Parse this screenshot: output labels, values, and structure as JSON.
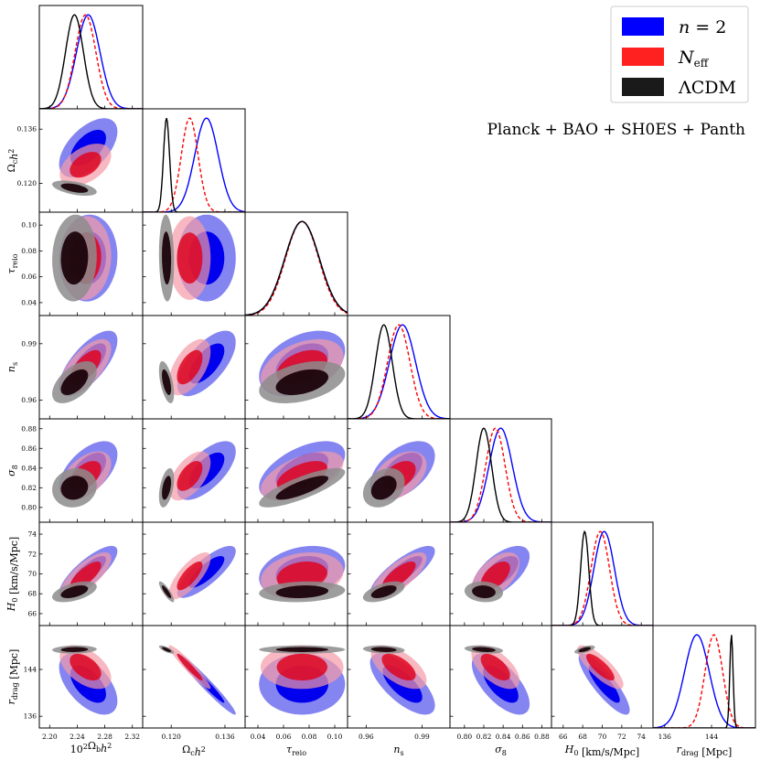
{
  "chart_data": {
    "type": "corner",
    "title": "Planck + BAO + SH0ES + Panth",
    "parameters": [
      {
        "id": "omega_b",
        "label": "10²Ω_b h²",
        "range": [
          2.185,
          2.335
        ],
        "ticks": [
          2.2,
          2.24,
          2.28,
          2.32
        ],
        "tick_labels": [
          "2.20",
          "2.24",
          "2.28",
          "2.32"
        ]
      },
      {
        "id": "omega_cdm",
        "label": "Ω_c h²",
        "range": [
          0.1115,
          0.142
        ],
        "ticks": [
          0.12,
          0.136
        ],
        "tick_labels": [
          "0.120",
          "0.136"
        ]
      },
      {
        "id": "tau_reio",
        "label": "τ_reio",
        "range": [
          0.03,
          0.11
        ],
        "ticks": [
          0.04,
          0.06,
          0.08,
          0.1
        ],
        "tick_labels": [
          "0.04",
          "0.06",
          "0.08",
          "0.10"
        ]
      },
      {
        "id": "n_s",
        "label": "n_s",
        "range": [
          0.95,
          1.005
        ],
        "ticks": [
          0.96,
          0.99
        ],
        "tick_labels": [
          "0.96",
          "0.99"
        ]
      },
      {
        "id": "sigma8",
        "label": "σ_8",
        "range": [
          0.785,
          0.89
        ],
        "ticks": [
          0.8,
          0.82,
          0.84,
          0.86,
          0.88
        ],
        "tick_labels": [
          "0.80",
          "0.82",
          "0.84",
          "0.86",
          "0.88"
        ]
      },
      {
        "id": "H0",
        "label": "H_0 [km/s/Mpc]",
        "range": [
          64.8,
          75.2
        ],
        "ticks": [
          66,
          68,
          70,
          72,
          74
        ],
        "tick_labels": [
          "66",
          "68",
          "70",
          "72",
          "74"
        ]
      },
      {
        "id": "rdrag",
        "label": "r_drag [Mpc]",
        "range": [
          134.0,
          151.5
        ],
        "ticks": [
          136,
          144
        ],
        "tick_labels": [
          "136",
          "144"
        ]
      }
    ],
    "series": [
      {
        "name": "n = 2",
        "color": "#0000ff",
        "linestyle": "solid",
        "mean": [
          2.256,
          0.1305,
          0.0745,
          0.9795,
          0.8375,
          70.2,
          141.5
        ],
        "sigma": [
          0.017,
          0.0035,
          0.0135,
          0.007,
          0.012,
          1.05,
          2.1
        ]
      },
      {
        "name": "N_eff",
        "color": "#ff0000",
        "linestyle": "dashed",
        "mean": [
          2.252,
          0.1255,
          0.0745,
          0.9775,
          0.832,
          69.8,
          144.4
        ],
        "sigma": [
          0.015,
          0.0025,
          0.013,
          0.006,
          0.01,
          0.95,
          1.5
        ]
      },
      {
        "name": "ΛCDM",
        "color": "#000000",
        "linestyle": "solid",
        "mean": [
          2.236,
          0.1186,
          0.0745,
          0.9695,
          0.82,
          68.2,
          147.4
        ],
        "sigma": [
          0.013,
          0.0009,
          0.0135,
          0.0045,
          0.008,
          0.42,
          0.28
        ]
      }
    ],
    "correlations": [
      [
        [
          0,
          1,
          0.55
        ],
        [
          0,
          2,
          0.05
        ],
        [
          0,
          3,
          0.7
        ],
        [
          0,
          4,
          0.55
        ],
        [
          0,
          5,
          0.8
        ],
        [
          0,
          6,
          -0.55
        ],
        [
          1,
          2,
          0.0
        ],
        [
          1,
          3,
          0.65
        ],
        [
          1,
          4,
          0.65
        ],
        [
          1,
          5,
          0.8
        ],
        [
          1,
          6,
          -0.97
        ],
        [
          2,
          3,
          0.4
        ],
        [
          2,
          4,
          0.55
        ],
        [
          2,
          5,
          0.25
        ],
        [
          2,
          6,
          0.0
        ],
        [
          3,
          4,
          0.5
        ],
        [
          3,
          5,
          0.8
        ],
        [
          3,
          6,
          -0.7
        ],
        [
          4,
          5,
          0.6
        ],
        [
          4,
          6,
          -0.65
        ],
        [
          5,
          6,
          -0.85
        ]
      ],
      [
        [
          0,
          1,
          0.45
        ],
        [
          0,
          2,
          0.05
        ],
        [
          0,
          3,
          0.65
        ],
        [
          0,
          4,
          0.5
        ],
        [
          0,
          5,
          0.75
        ],
        [
          0,
          6,
          -0.5
        ],
        [
          1,
          2,
          0.0
        ],
        [
          1,
          3,
          0.55
        ],
        [
          1,
          4,
          0.55
        ],
        [
          1,
          5,
          0.75
        ],
        [
          1,
          6,
          -0.95
        ],
        [
          2,
          3,
          0.4
        ],
        [
          2,
          4,
          0.55
        ],
        [
          2,
          5,
          0.2
        ],
        [
          2,
          6,
          0.0
        ],
        [
          3,
          4,
          0.45
        ],
        [
          3,
          5,
          0.75
        ],
        [
          3,
          6,
          -0.6
        ],
        [
          4,
          5,
          0.55
        ],
        [
          4,
          6,
          -0.6
        ],
        [
          5,
          6,
          -0.8
        ]
      ],
      [
        [
          0,
          1,
          -0.5
        ],
        [
          0,
          2,
          0.05
        ],
        [
          0,
          3,
          0.55
        ],
        [
          0,
          4,
          0.1
        ],
        [
          0,
          5,
          0.5
        ],
        [
          0,
          6,
          0.1
        ],
        [
          1,
          2,
          -0.1
        ],
        [
          1,
          3,
          -0.55
        ],
        [
          1,
          4,
          0.45
        ],
        [
          1,
          5,
          -0.85
        ],
        [
          1,
          6,
          -0.75
        ],
        [
          2,
          3,
          0.4
        ],
        [
          2,
          4,
          0.8
        ],
        [
          2,
          5,
          0.15
        ],
        [
          2,
          6,
          0.0
        ],
        [
          3,
          4,
          0.3
        ],
        [
          3,
          5,
          0.55
        ],
        [
          3,
          6,
          -0.2
        ],
        [
          4,
          5,
          -0.1
        ],
        [
          4,
          6,
          -0.3
        ],
        [
          5,
          6,
          0.6
        ]
      ]
    ]
  },
  "legend": {
    "entries": [
      {
        "label": "n = 2",
        "color": "#0000ff"
      },
      {
        "label": "N_eff",
        "color": "#ff2020"
      },
      {
        "label": "ΛCDM",
        "color": "#1a1a1a"
      }
    ]
  },
  "colors": {
    "blue_fill_outer": "#7070ee",
    "blue_fill_inner": "#0000ee",
    "red_fill_outer": "#f49aa6",
    "red_fill_inner": "#e0001a",
    "black_fill_outer": "#8c8c8c",
    "black_fill_inner": "#180006"
  }
}
